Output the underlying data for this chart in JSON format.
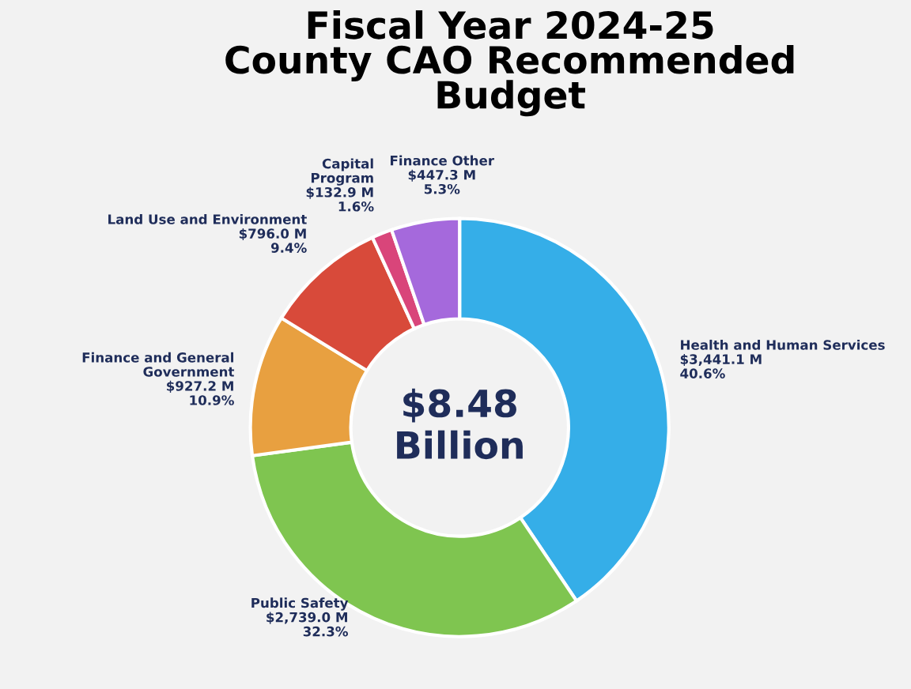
{
  "chart_data": {
    "type": "donut",
    "title": "Fiscal Year 2024-25\nCounty CAO Recommended\nBudget",
    "categories": [
      "Health and Human Services",
      "Public Safety",
      "Finance and General\nGovernment",
      "Land Use and Environment",
      "Capital\nProgram",
      "Finance Other"
    ],
    "values": [
      3441.1,
      2739.0,
      927.2,
      796.0,
      132.9,
      447.3
    ],
    "colors": [
      "#35aee8",
      "#7fc550",
      "#e8a040",
      "#d84a3a",
      "#d9457a",
      "#a569dc"
    ],
    "value_labels": [
      "$3,441.1 M\n40.6%",
      "$2,739.0 M\n32.3%",
      "$927.2 M\n10.9%",
      "$796.0 M\n9.4%",
      "$132.9 M\n1.6%",
      "$447.3 M\n5.3%"
    ],
    "annotations": [
      "$8.48\nBillion"
    ],
    "legend": false
  }
}
